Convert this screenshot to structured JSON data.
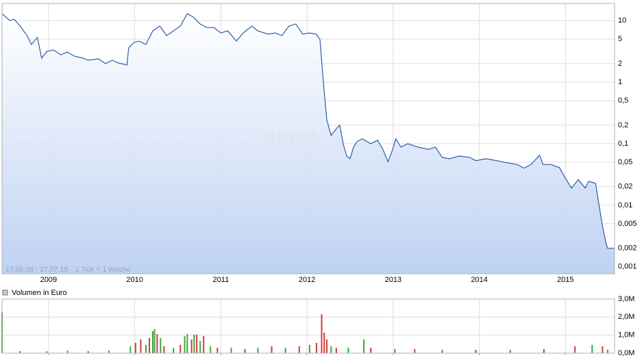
{
  "chart_data": [
    {
      "type": "line",
      "color": "#2a5caa",
      "log_scale": true,
      "grid": true,
      "annotations": [
        "17.06.08 - 27.07.15",
        "1 Tick = 1 Woche"
      ],
      "watermark": "ARIVA",
      "xlim": [
        2008.46,
        2015.57
      ],
      "xticks": [
        2009,
        2010,
        2011,
        2012,
        2013,
        2014,
        2015
      ],
      "ylim": [
        0.00077,
        19
      ],
      "yticks": [
        10,
        5,
        2,
        1,
        {
          "value": 0.5,
          "label": "0,5"
        },
        {
          "value": 0.2,
          "label": "0,2"
        },
        {
          "value": 0.1,
          "label": "0,1"
        },
        {
          "value": 0.05,
          "label": "0,05"
        },
        {
          "value": 0.02,
          "label": "0,02"
        },
        {
          "value": 0.01,
          "label": "0,01"
        },
        {
          "value": 0.005,
          "label": "0,005"
        },
        {
          "value": 0.002,
          "label": "0,002"
        },
        {
          "value": 0.001,
          "label": "0,001"
        }
      ],
      "x": [
        2008.46,
        2008.55,
        2008.6,
        2008.67,
        2008.75,
        2008.8,
        2008.87,
        2008.92,
        2008.98,
        2009.06,
        2009.14,
        2009.22,
        2009.3,
        2009.4,
        2009.46,
        2009.58,
        2009.66,
        2009.74,
        2009.81,
        2009.91,
        2009.93,
        2009.99,
        2010.05,
        2010.13,
        2010.21,
        2010.29,
        2010.37,
        2010.45,
        2010.53,
        2010.61,
        2010.68,
        2010.76,
        2010.84,
        2010.92,
        2011.0,
        2011.08,
        2011.18,
        2011.26,
        2011.36,
        2011.43,
        2011.55,
        2011.63,
        2011.71,
        2011.79,
        2011.87,
        2011.95,
        2012.03,
        2012.11,
        2012.15,
        2012.19,
        2012.23,
        2012.28,
        2012.34,
        2012.38,
        2012.42,
        2012.46,
        2012.5,
        2012.54,
        2012.58,
        2012.64,
        2012.74,
        2012.82,
        2012.88,
        2012.94,
        2012.99,
        2013.03,
        2013.09,
        2013.17,
        2013.29,
        2013.41,
        2013.49,
        2013.57,
        2013.65,
        2013.77,
        2013.89,
        2013.96,
        2014.08,
        2014.2,
        2014.32,
        2014.44,
        2014.52,
        2014.6,
        2014.7,
        2014.74,
        2014.83,
        2014.93,
        2014.99,
        2015.07,
        2015.15,
        2015.23,
        2015.27,
        2015.35,
        2015.39,
        2015.43,
        2015.47,
        2015.49,
        2015.57
      ],
      "values": [
        12.9,
        10,
        10.5,
        8.15,
        5.7,
        4.1,
        5.3,
        2.45,
        3.16,
        3.33,
        2.78,
        3.08,
        2.64,
        2.45,
        2.27,
        2.39,
        2.0,
        2.27,
        2.05,
        1.9,
        3.6,
        4.4,
        4.64,
        4.1,
        6.8,
        8.15,
        5.7,
        6.8,
        8.15,
        12.9,
        11.4,
        8.8,
        7.7,
        7.7,
        6.3,
        6.8,
        4.64,
        6.3,
        8.15,
        6.8,
        6.0,
        6.3,
        5.7,
        8.15,
        8.8,
        6.0,
        6.3,
        6.0,
        4.9,
        1.0,
        0.245,
        0.136,
        0.175,
        0.2,
        0.1,
        0.063,
        0.057,
        0.088,
        0.108,
        0.12,
        0.1,
        0.114,
        0.081,
        0.051,
        0.077,
        0.12,
        0.088,
        0.1,
        0.088,
        0.081,
        0.088,
        0.06,
        0.057,
        0.063,
        0.06,
        0.053,
        0.057,
        0.053,
        0.049,
        0.046,
        0.04,
        0.046,
        0.065,
        0.046,
        0.046,
        0.041,
        0.029,
        0.019,
        0.026,
        0.019,
        0.0245,
        0.0227,
        0.01,
        0.0046,
        0.00245,
        0.002,
        0.002
      ]
    },
    {
      "type": "bar",
      "title": "Volumen in Euro",
      "grid": true,
      "xlim": [
        2008.46,
        2015.57
      ],
      "xticks": [
        2009,
        2010,
        2011,
        2012,
        2013,
        2014,
        2015
      ],
      "ylim": [
        0,
        3000000
      ],
      "yticks": [
        {
          "value": 3000000,
          "label": "3,0M"
        },
        {
          "value": 2000000,
          "label": "2,0M"
        },
        {
          "value": 1000000,
          "label": "1,0M"
        },
        {
          "value": 0,
          "label": "0,0M"
        }
      ],
      "x": [
        2008.46,
        2008.67,
        2008.98,
        2009.22,
        2009.46,
        2009.7,
        2009.95,
        2010.01,
        2010.07,
        2010.13,
        2010.17,
        2010.21,
        2010.23,
        2010.26,
        2010.3,
        2010.34,
        2010.45,
        2010.53,
        2010.58,
        2010.61,
        2010.66,
        2010.69,
        2010.72,
        2010.76,
        2010.8,
        2010.88,
        2010.96,
        2011.12,
        2011.28,
        2011.43,
        2011.59,
        2011.75,
        2011.91,
        2012.03,
        2012.11,
        2012.17,
        2012.2,
        2012.23,
        2012.28,
        2012.34,
        2012.48,
        2012.66,
        2012.74,
        2013.02,
        2013.25,
        2013.57,
        2013.96,
        2014.36,
        2014.75,
        2015.11,
        2015.31,
        2015.43,
        2015.49
      ],
      "values": [
        2280000,
        110000,
        110000,
        150000,
        110000,
        150000,
        380000,
        570000,
        760000,
        460000,
        840000,
        1220000,
        1330000,
        1060000,
        840000,
        380000,
        300000,
        460000,
        950000,
        1060000,
        760000,
        1030000,
        1030000,
        680000,
        950000,
        380000,
        300000,
        300000,
        230000,
        300000,
        380000,
        300000,
        380000,
        460000,
        570000,
        2160000,
        1140000,
        760000,
        380000,
        300000,
        300000,
        760000,
        300000,
        230000,
        230000,
        190000,
        190000,
        190000,
        230000,
        380000,
        460000,
        380000,
        190000
      ],
      "colors": [
        "#3aa63a",
        "#d03a3a",
        "#3aa63a",
        "#3aa63a",
        "#d03a3a",
        "#3aa63a",
        "#3aa63a",
        "#d03a3a",
        "#d03a3a",
        "#3aa63a",
        "#d03a3a",
        "#3aa63a",
        "#3aa63a",
        "#d03a3a",
        "#3aa63a",
        "#d03a3a",
        "#3aa63a",
        "#d03a3a",
        "#3aa63a",
        "#3aa63a",
        "#d03a3a",
        "#3aa63a",
        "#d03a3a",
        "#3aa63a",
        "#d03a3a",
        "#3aa63a",
        "#d03a3a",
        "#3aa63a",
        "#d03a3a",
        "#3aa63a",
        "#d03a3a",
        "#3aa63a",
        "#d03a3a",
        "#3aa63a",
        "#d03a3a",
        "#d03a3a",
        "#d03a3a",
        "#d03a3a",
        "#3aa63a",
        "#d03a3a",
        "#3aa63a",
        "#3aa63a",
        "#d03a3a",
        "#3aa63a",
        "#d03a3a",
        "#3aa63a",
        "#d03a3a",
        "#3aa63a",
        "#d03a3a",
        "#d03a3a",
        "#3aa63a",
        "#d03a3a",
        "#3aa63a"
      ]
    }
  ]
}
